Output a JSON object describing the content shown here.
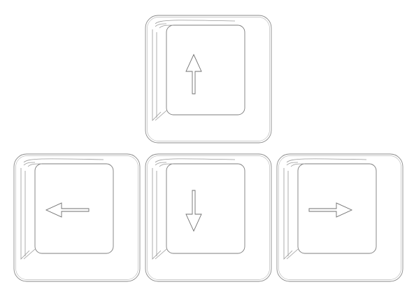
{
  "keys": [
    {
      "id": "up",
      "icon": "arrow-up-icon"
    },
    {
      "id": "left",
      "icon": "arrow-left-icon"
    },
    {
      "id": "down",
      "icon": "arrow-down-icon"
    },
    {
      "id": "right",
      "icon": "arrow-right-icon"
    }
  ],
  "colors": {
    "background": "#ffffff",
    "outline": "#8a8a8a"
  }
}
